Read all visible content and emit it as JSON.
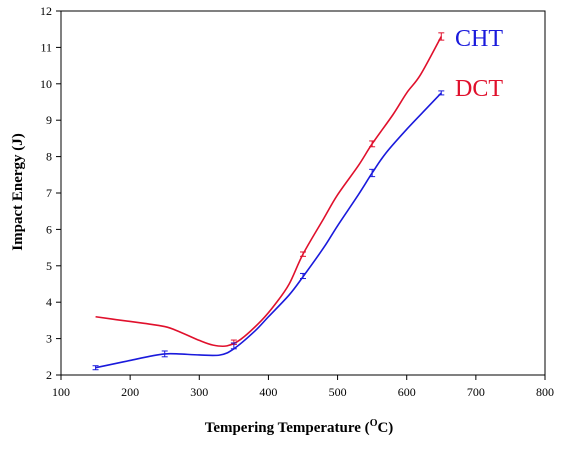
{
  "chart_data": {
    "type": "line",
    "xlabel_main": "Tempering Temperature (",
    "xlabel_sup": "O",
    "xlabel_tail": "C)",
    "ylabel": "Impact Energy (J)",
    "xlim": [
      100,
      800
    ],
    "ylim": [
      2,
      12
    ],
    "xticks": [
      100,
      200,
      300,
      400,
      500,
      600,
      700,
      800
    ],
    "yticks": [
      2,
      3,
      4,
      5,
      6,
      7,
      8,
      9,
      10,
      11,
      12
    ],
    "legend_placement": "top-right",
    "series": [
      {
        "name": "CHT",
        "color": "#1a1adc",
        "x": [
          150,
          170,
          200,
          230,
          250,
          270,
          300,
          330,
          350,
          380,
          400,
          430,
          450,
          480,
          500,
          530,
          550,
          570,
          600,
          630,
          650
        ],
        "y": [
          2.2,
          2.28,
          2.4,
          2.52,
          2.58,
          2.58,
          2.55,
          2.55,
          2.72,
          3.2,
          3.6,
          4.2,
          4.7,
          5.5,
          6.1,
          6.95,
          7.55,
          8.1,
          8.75,
          9.35,
          9.75
        ],
        "error_x": [
          150,
          250,
          350,
          450,
          550,
          650
        ],
        "error_y": [
          2.2,
          2.58,
          2.8,
          4.72,
          7.55,
          9.75
        ],
        "error_half": [
          0.04,
          0.08,
          0.08,
          0.07,
          0.1,
          0.05
        ]
      },
      {
        "name": "DCT",
        "color": "#e0102c",
        "x": [
          150,
          180,
          220,
          250,
          270,
          300,
          320,
          340,
          360,
          390,
          410,
          430,
          450,
          480,
          500,
          530,
          550,
          580,
          600,
          620,
          650
        ],
        "y": [
          3.6,
          3.52,
          3.42,
          3.33,
          3.2,
          2.95,
          2.82,
          2.8,
          2.98,
          3.5,
          3.95,
          4.5,
          5.32,
          6.3,
          6.95,
          7.75,
          8.35,
          9.15,
          9.75,
          10.25,
          11.3
        ],
        "error_x": [
          450,
          550,
          650,
          350
        ],
        "error_y": [
          5.32,
          8.35,
          11.3,
          2.9
        ],
        "error_half": [
          0.06,
          0.08,
          0.1,
          0.06
        ]
      }
    ]
  }
}
